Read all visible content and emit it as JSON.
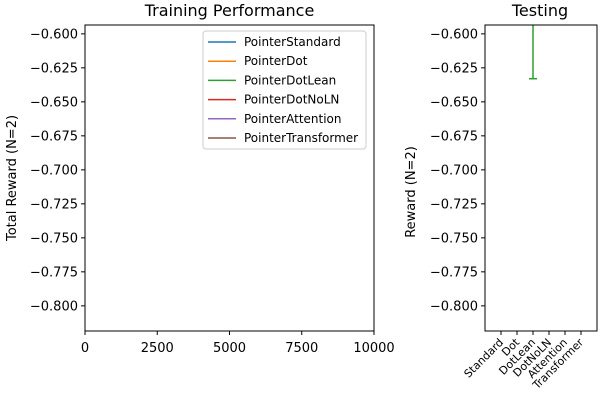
{
  "chart_data": [
    {
      "type": "line",
      "title": "Training Performance",
      "xlabel": "",
      "ylabel": "Total Reward (N=2)",
      "xlim": [
        0,
        10000
      ],
      "ylim": [
        -0.8185,
        -0.5935
      ],
      "xticks": [
        0,
        2500,
        5000,
        7500,
        10000
      ],
      "xtick_labels": [
        "0",
        "2500",
        "5000",
        "7500",
        "10000"
      ],
      "yticks": [
        -0.6,
        -0.625,
        -0.65,
        -0.675,
        -0.7,
        -0.725,
        -0.75,
        -0.775,
        -0.8
      ],
      "ytick_labels": [
        "−0.600",
        "−0.625",
        "−0.650",
        "−0.675",
        "−0.700",
        "−0.725",
        "−0.750",
        "−0.775",
        "−0.800"
      ],
      "grid": false,
      "legend_position": "top-right",
      "series": [
        {
          "name": "PointerStandard",
          "color": "#1f77b4",
          "values": []
        },
        {
          "name": "PointerDot",
          "color": "#ff7f0e",
          "values": []
        },
        {
          "name": "PointerDotLean",
          "color": "#2ca02c",
          "values": []
        },
        {
          "name": "PointerDotNoLN",
          "color": "#d62728",
          "values": []
        },
        {
          "name": "PointerAttention",
          "color": "#9467bd",
          "values": []
        },
        {
          "name": "PointerTransformer",
          "color": "#8c564b",
          "values": []
        }
      ]
    },
    {
      "type": "errorbar",
      "title": "Testing",
      "xlabel": "",
      "ylabel": "Reward (N=2)",
      "ylim": [
        -0.8185,
        -0.5935
      ],
      "yticks": [
        -0.6,
        -0.625,
        -0.65,
        -0.675,
        -0.7,
        -0.725,
        -0.75,
        -0.775,
        -0.8
      ],
      "ytick_labels": [
        "−0.600",
        "−0.625",
        "−0.650",
        "−0.675",
        "−0.700",
        "−0.725",
        "−0.750",
        "−0.775",
        "−0.800"
      ],
      "categories": [
        "Standard",
        "Dot",
        "DotLean",
        "DotNoLN",
        "Attention",
        "Transformer"
      ],
      "grid": false,
      "points": [
        {
          "category": "DotLean",
          "color": "#2ca02c",
          "upper": -0.5935,
          "lower": -0.633
        }
      ]
    }
  ]
}
